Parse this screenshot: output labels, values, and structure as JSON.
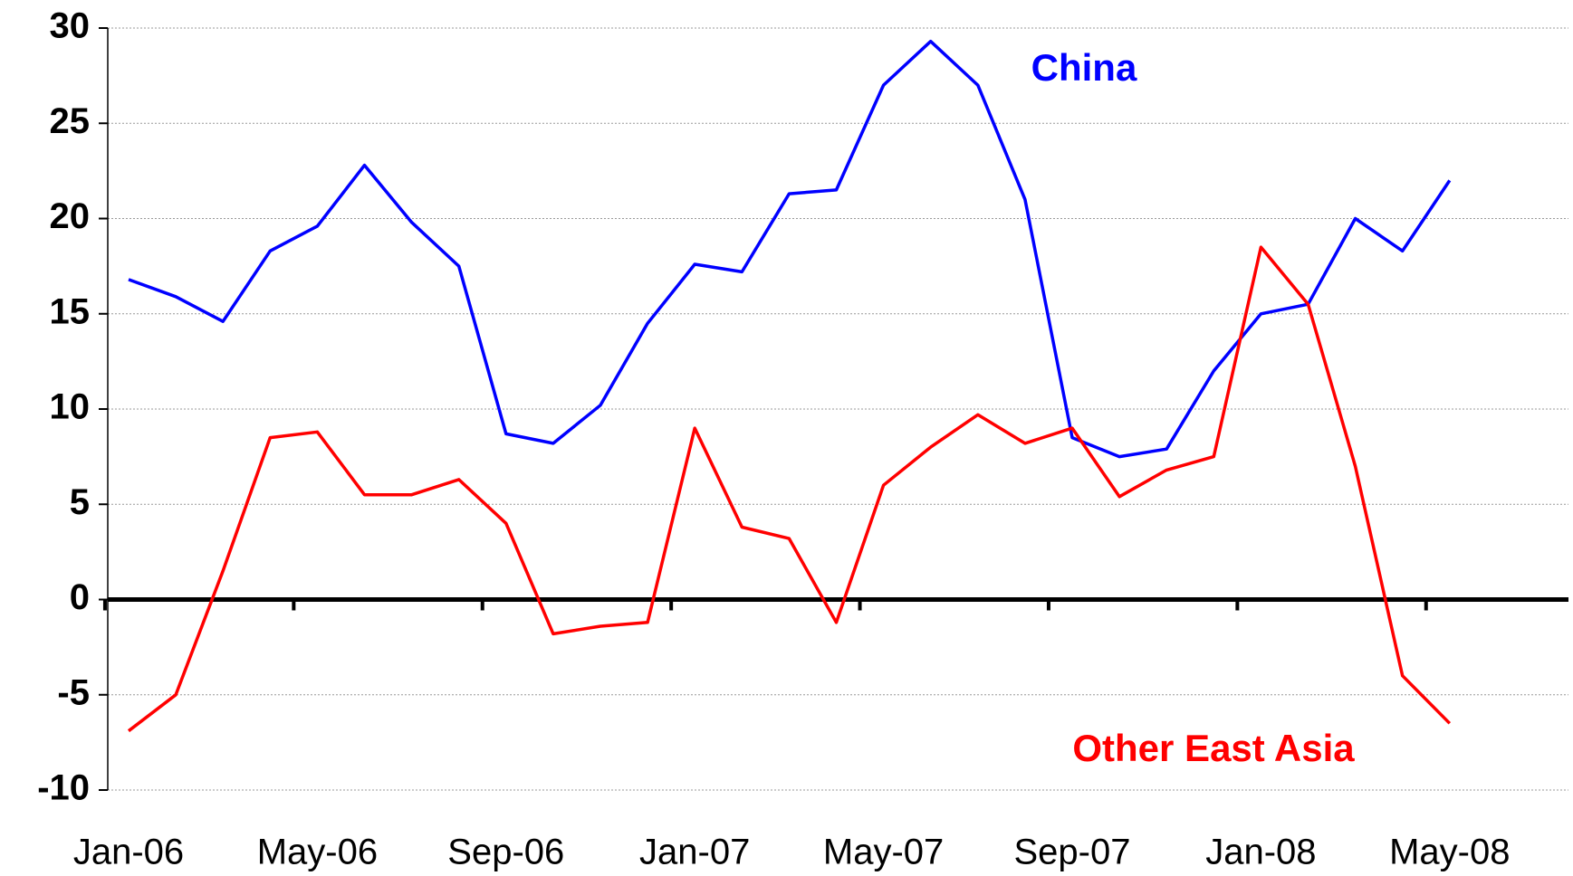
{
  "chart_data": {
    "type": "line",
    "categories": [
      "Jan-06",
      null,
      null,
      null,
      "May-06",
      null,
      null,
      null,
      "Sep-06",
      null,
      null,
      null,
      "Jan-07",
      null,
      null,
      null,
      "May-07",
      null,
      null,
      null,
      "Sep-07",
      null,
      null,
      null,
      "Jan-08",
      null,
      null,
      null,
      "May-08"
    ],
    "series": [
      {
        "name": "China",
        "color": "#0000ff",
        "values": [
          16.8,
          15.9,
          14.6,
          18.3,
          19.6,
          22.8,
          19.8,
          17.5,
          8.7,
          8.2,
          10.2,
          14.5,
          17.6,
          17.2,
          21.3,
          21.5,
          27.0,
          29.3,
          27.0,
          21.0,
          8.5,
          7.5,
          7.9,
          12.0,
          15.0,
          15.5,
          20.0,
          18.3,
          22.0
        ]
      },
      {
        "name": "Other East Asia",
        "color": "#ff0000",
        "values": [
          -6.9,
          -5.0,
          1.5,
          8.5,
          8.8,
          5.5,
          5.5,
          6.3,
          4.0,
          -1.8,
          -1.4,
          -1.2,
          9.0,
          3.8,
          3.2,
          -1.2,
          6.0,
          8.0,
          9.7,
          8.2,
          9.0,
          5.4,
          6.8,
          7.5,
          18.5,
          15.5,
          7.0,
          -4.0,
          -6.5
        ]
      }
    ],
    "ylim": [
      -10,
      30
    ],
    "yticks": [
      -10,
      -5,
      0,
      5,
      10,
      15,
      20,
      25,
      30
    ],
    "grid": true
  }
}
